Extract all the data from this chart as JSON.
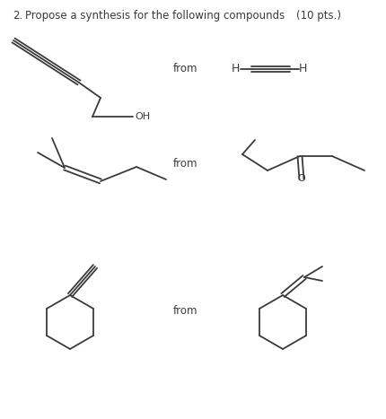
{
  "title_number": "2.",
  "title_text": "Propose a synthesis for the following compounds",
  "title_pts": "(10 pts.)",
  "from_label": "from",
  "background_color": "#ffffff",
  "text_color": "#3a3a3a",
  "line_color": "#3a3a3a",
  "font_size_title": 8.5,
  "font_size_label": 8.5,
  "fig_width": 4.31,
  "fig_height": 4.67,
  "dpi": 100
}
